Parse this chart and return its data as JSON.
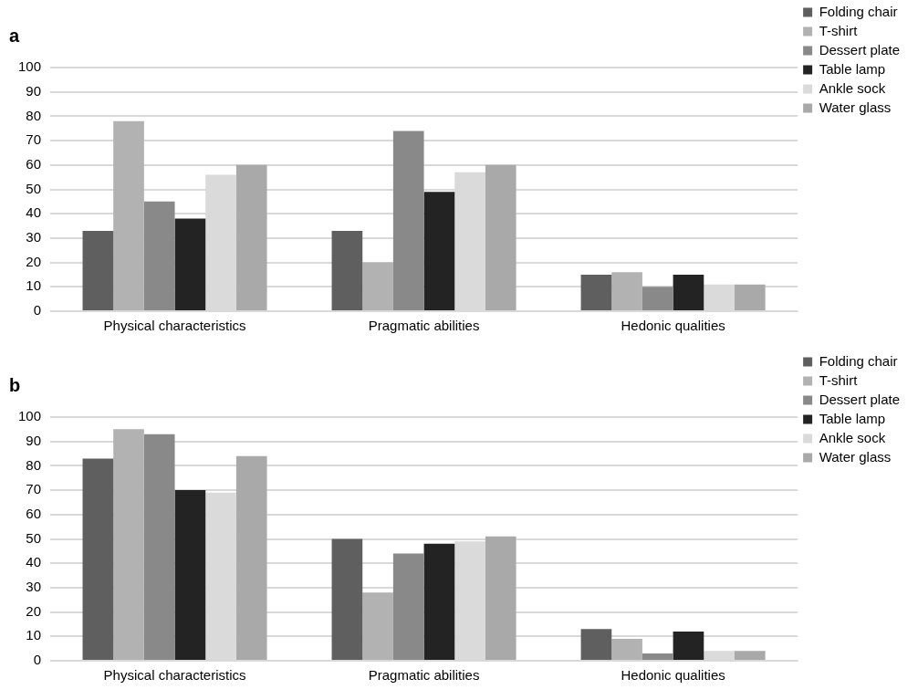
{
  "chart_data": [
    {
      "type": "bar",
      "title": "a",
      "categories": [
        "Physical characteristics",
        "Pragmatic abilities",
        "Hedonic qualities"
      ],
      "series": [
        {
          "name": "Folding chair",
          "color": "#5f5f5f",
          "values": [
            33,
            33,
            15
          ]
        },
        {
          "name": "T-shirt",
          "color": "#b2b2b2",
          "values": [
            78,
            20,
            16
          ]
        },
        {
          "name": "Dessert plate",
          "color": "#898989",
          "values": [
            45,
            74,
            10
          ]
        },
        {
          "name": "Table lamp",
          "color": "#232323",
          "values": [
            38,
            49,
            15
          ]
        },
        {
          "name": "Ankle sock",
          "color": "#dadada",
          "values": [
            56,
            57,
            11
          ]
        },
        {
          "name": "Water glass",
          "color": "#a9a9a9",
          "values": [
            60,
            60,
            11
          ]
        }
      ],
      "ylim": [
        0,
        100
      ],
      "yticks": [
        0,
        10,
        20,
        30,
        40,
        50,
        60,
        70,
        80,
        90,
        100
      ],
      "grid": "y",
      "legend": "right"
    },
    {
      "type": "bar",
      "title": "b",
      "categories": [
        "Physical characteristics",
        "Pragmatic abilities",
        "Hedonic qualities"
      ],
      "series": [
        {
          "name": "Folding chair",
          "color": "#5f5f5f",
          "values": [
            83,
            50,
            13
          ]
        },
        {
          "name": "T-shirt",
          "color": "#b2b2b2",
          "values": [
            95,
            28,
            9
          ]
        },
        {
          "name": "Dessert plate",
          "color": "#898989",
          "values": [
            93,
            44,
            3
          ]
        },
        {
          "name": "Table lamp",
          "color": "#232323",
          "values": [
            70,
            48,
            12
          ]
        },
        {
          "name": "Ankle sock",
          "color": "#dadada",
          "values": [
            69,
            49,
            4
          ]
        },
        {
          "name": "Water glass",
          "color": "#a9a9a9",
          "values": [
            84,
            51,
            4
          ]
        }
      ],
      "ylim": [
        0,
        100
      ],
      "yticks": [
        0,
        10,
        20,
        30,
        40,
        50,
        60,
        70,
        80,
        90,
        100
      ],
      "grid": "y",
      "legend": "right"
    }
  ]
}
